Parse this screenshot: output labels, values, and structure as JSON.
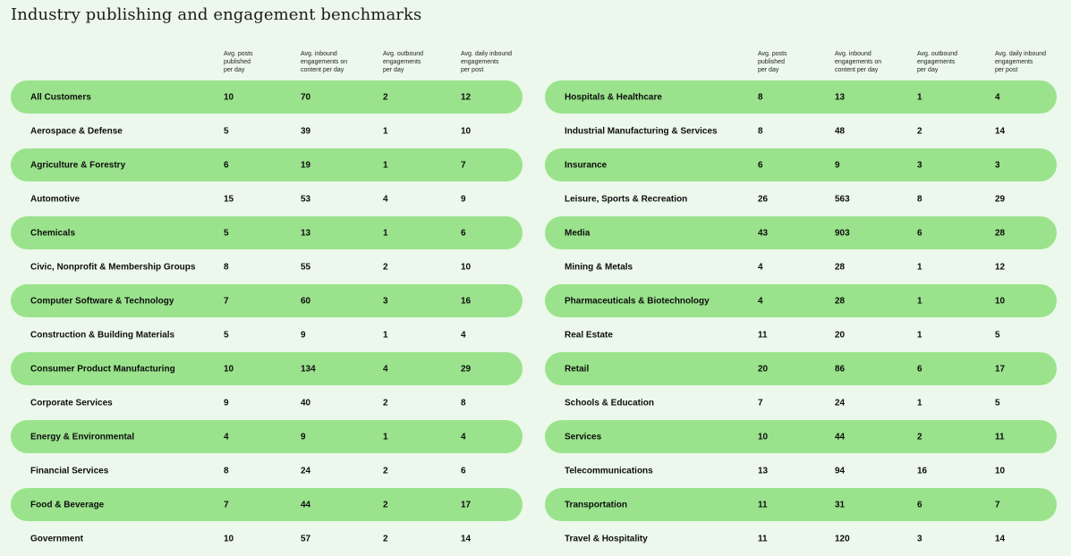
{
  "title": "Industry publishing and engagement benchmarks",
  "colors": {
    "background": "#ecf8eb",
    "row_highlight": "#9ae38c",
    "text": "#111111"
  },
  "headers": [
    [
      "Avg. posts",
      "published",
      "per day"
    ],
    [
      "Avg. inbound",
      "engagements on",
      "content per day"
    ],
    [
      "Avg. outbound",
      "engagements",
      "per day"
    ],
    [
      "Avg. daily inbound",
      "engagements",
      "per post"
    ]
  ],
  "chart_data": {
    "type": "table",
    "columns": [
      "Avg. posts published per day",
      "Avg. inbound engagements on content per day",
      "Avg. outbound engagements per day",
      "Avg. daily inbound engagements per post"
    ],
    "left": [
      {
        "industry": "All Customers",
        "values": [
          "10",
          "70",
          "2",
          "12"
        ]
      },
      {
        "industry": "Aerospace & Defense",
        "values": [
          "5",
          "39",
          "1",
          "10"
        ]
      },
      {
        "industry": "Agriculture & Forestry",
        "values": [
          "6",
          "19",
          "1",
          "7"
        ]
      },
      {
        "industry": "Automotive",
        "values": [
          "15",
          "53",
          "4",
          "9"
        ]
      },
      {
        "industry": "Chemicals",
        "values": [
          "5",
          "13",
          "1",
          "6"
        ]
      },
      {
        "industry": "Civic, Nonprofit & Membership Groups",
        "values": [
          "8",
          "55",
          "2",
          "10"
        ]
      },
      {
        "industry": "Computer Software & Technology",
        "values": [
          "7",
          "60",
          "3",
          "16"
        ]
      },
      {
        "industry": "Construction & Building Materials",
        "values": [
          "5",
          "9",
          "1",
          "4"
        ]
      },
      {
        "industry": "Consumer Product Manufacturing",
        "values": [
          "10",
          "134",
          "4",
          "29"
        ]
      },
      {
        "industry": "Corporate Services",
        "values": [
          "9",
          "40",
          "2",
          "8"
        ]
      },
      {
        "industry": "Energy & Environmental",
        "values": [
          "4",
          "9",
          "1",
          "4"
        ]
      },
      {
        "industry": "Financial Services",
        "values": [
          "8",
          "24",
          "2",
          "6"
        ]
      },
      {
        "industry": "Food & Beverage",
        "values": [
          "7",
          "44",
          "2",
          "17"
        ]
      },
      {
        "industry": "Government",
        "values": [
          "10",
          "57",
          "2",
          "14"
        ]
      }
    ],
    "right": [
      {
        "industry": "Hospitals & Healthcare",
        "values": [
          "8",
          "13",
          "1",
          "4"
        ]
      },
      {
        "industry": "Industrial Manufacturing & Services",
        "values": [
          "8",
          "48",
          "2",
          "14"
        ]
      },
      {
        "industry": "Insurance",
        "values": [
          "6",
          "9",
          "3",
          "3"
        ]
      },
      {
        "industry": "Leisure, Sports & Recreation",
        "values": [
          "26",
          "563",
          "8",
          "29"
        ]
      },
      {
        "industry": "Media",
        "values": [
          "43",
          "903",
          "6",
          "28"
        ]
      },
      {
        "industry": "Mining & Metals",
        "values": [
          "4",
          "28",
          "1",
          "12"
        ]
      },
      {
        "industry": "Pharmaceuticals & Biotechnology",
        "values": [
          "4",
          "28",
          "1",
          "10"
        ]
      },
      {
        "industry": "Real Estate",
        "values": [
          "11",
          "20",
          "1",
          "5"
        ]
      },
      {
        "industry": "Retail",
        "values": [
          "20",
          "86",
          "6",
          "17"
        ]
      },
      {
        "industry": "Schools & Education",
        "values": [
          "7",
          "24",
          "1",
          "5"
        ]
      },
      {
        "industry": "Services",
        "values": [
          "10",
          "44",
          "2",
          "11"
        ]
      },
      {
        "industry": "Telecommunications",
        "values": [
          "13",
          "94",
          "16",
          "10"
        ]
      },
      {
        "industry": "Transportation",
        "values": [
          "11",
          "31",
          "6",
          "7"
        ]
      },
      {
        "industry": "Travel & Hospitality",
        "values": [
          "11",
          "120",
          "3",
          "14"
        ]
      }
    ]
  }
}
